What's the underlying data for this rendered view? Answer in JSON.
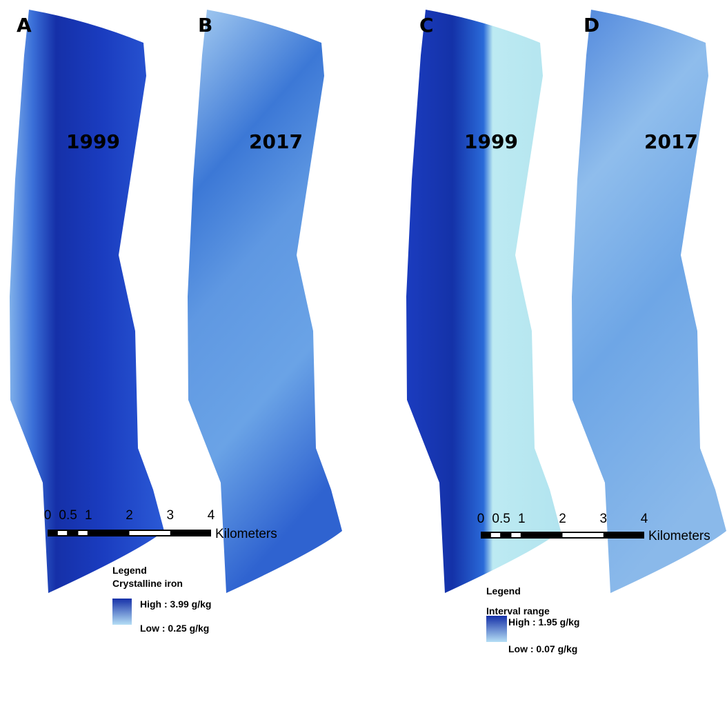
{
  "panels": [
    {
      "letter": "A",
      "year": "1999"
    },
    {
      "letter": "B",
      "year": "2017"
    },
    {
      "letter": "C",
      "year": "1999"
    },
    {
      "letter": "D",
      "year": "2017"
    }
  ],
  "legends": [
    {
      "title": "Legend",
      "variable": "Crystalline iron",
      "high": "High : 3.99 g/kg",
      "low": "Low : 0.25 g/kg"
    },
    {
      "title": "Legend",
      "variable": "Interval range",
      "high": "High : 1.95 g/kg",
      "low": "Low : 0.07 g/kg"
    }
  ],
  "scale_bars": [
    {
      "ticks": [
        0,
        0.5,
        1,
        2,
        3,
        4
      ],
      "unit": "Kilometers"
    },
    {
      "ticks": [
        0,
        0.5,
        1,
        2,
        3,
        4
      ],
      "unit": "Kilometers"
    }
  ]
}
